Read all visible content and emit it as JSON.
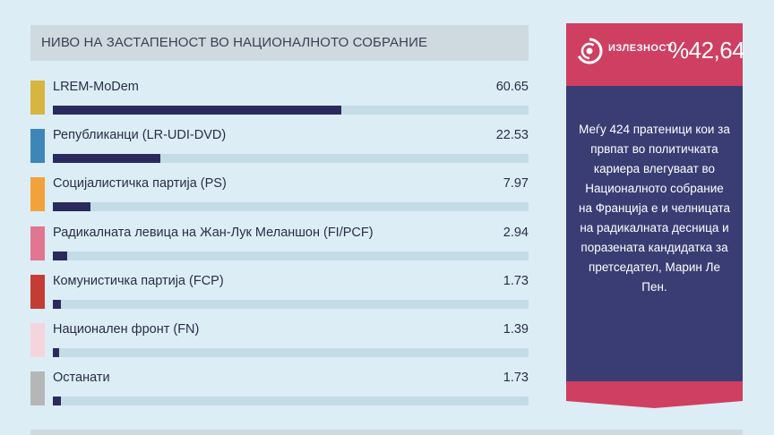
{
  "header": {
    "title": "НИВО НА ЗАСТАПЕНОСТ ВО НАЦИОНАЛНОТО СОБРАНИЕ"
  },
  "chart_data": {
    "type": "bar",
    "orientation": "horizontal",
    "title": "НИВО НА ЗАСТАПЕНОСТ ВО НАЦИОНАЛНОТО СОБРАНИЕ",
    "xlim": [
      0,
      100
    ],
    "grid": false,
    "categories": [
      "LREM-MoDem",
      "Републиканци (LR-UDI-DVD)",
      "Социјалистичка партија (PS)",
      "Радикалната левица на Жан-Лук Меланшон (FI/PCF)",
      "Комунистичка партија (FCP)",
      "Национален фронт (FN)",
      "Останати"
    ],
    "value_labels": [
      "60.65",
      "22.53",
      "7.97",
      "2.94",
      "1.73",
      "1.39",
      "1.73"
    ],
    "values": [
      60.65,
      22.53,
      7.97,
      2.94,
      1.73,
      1.39,
      1.73
    ],
    "colors": [
      "#d6b640",
      "#3f86b8",
      "#f2a23a",
      "#e07690",
      "#c43c34",
      "#f6d4dc",
      "#b5b7b7"
    ]
  },
  "sidebar": {
    "turnout_label": "ИЗЛЕЗНОСТ",
    "turnout_value": "%42,64",
    "text": "Меѓу 424 пратеници кои за првпат во политичката кариера влегуваат во Националното собрание на Франција е и челницата на радикалната десница и поразената кандидатка за претседател, Марин Ле Пен.",
    "colors": {
      "accent": "#cf3f62",
      "body": "#3a3d73"
    }
  }
}
